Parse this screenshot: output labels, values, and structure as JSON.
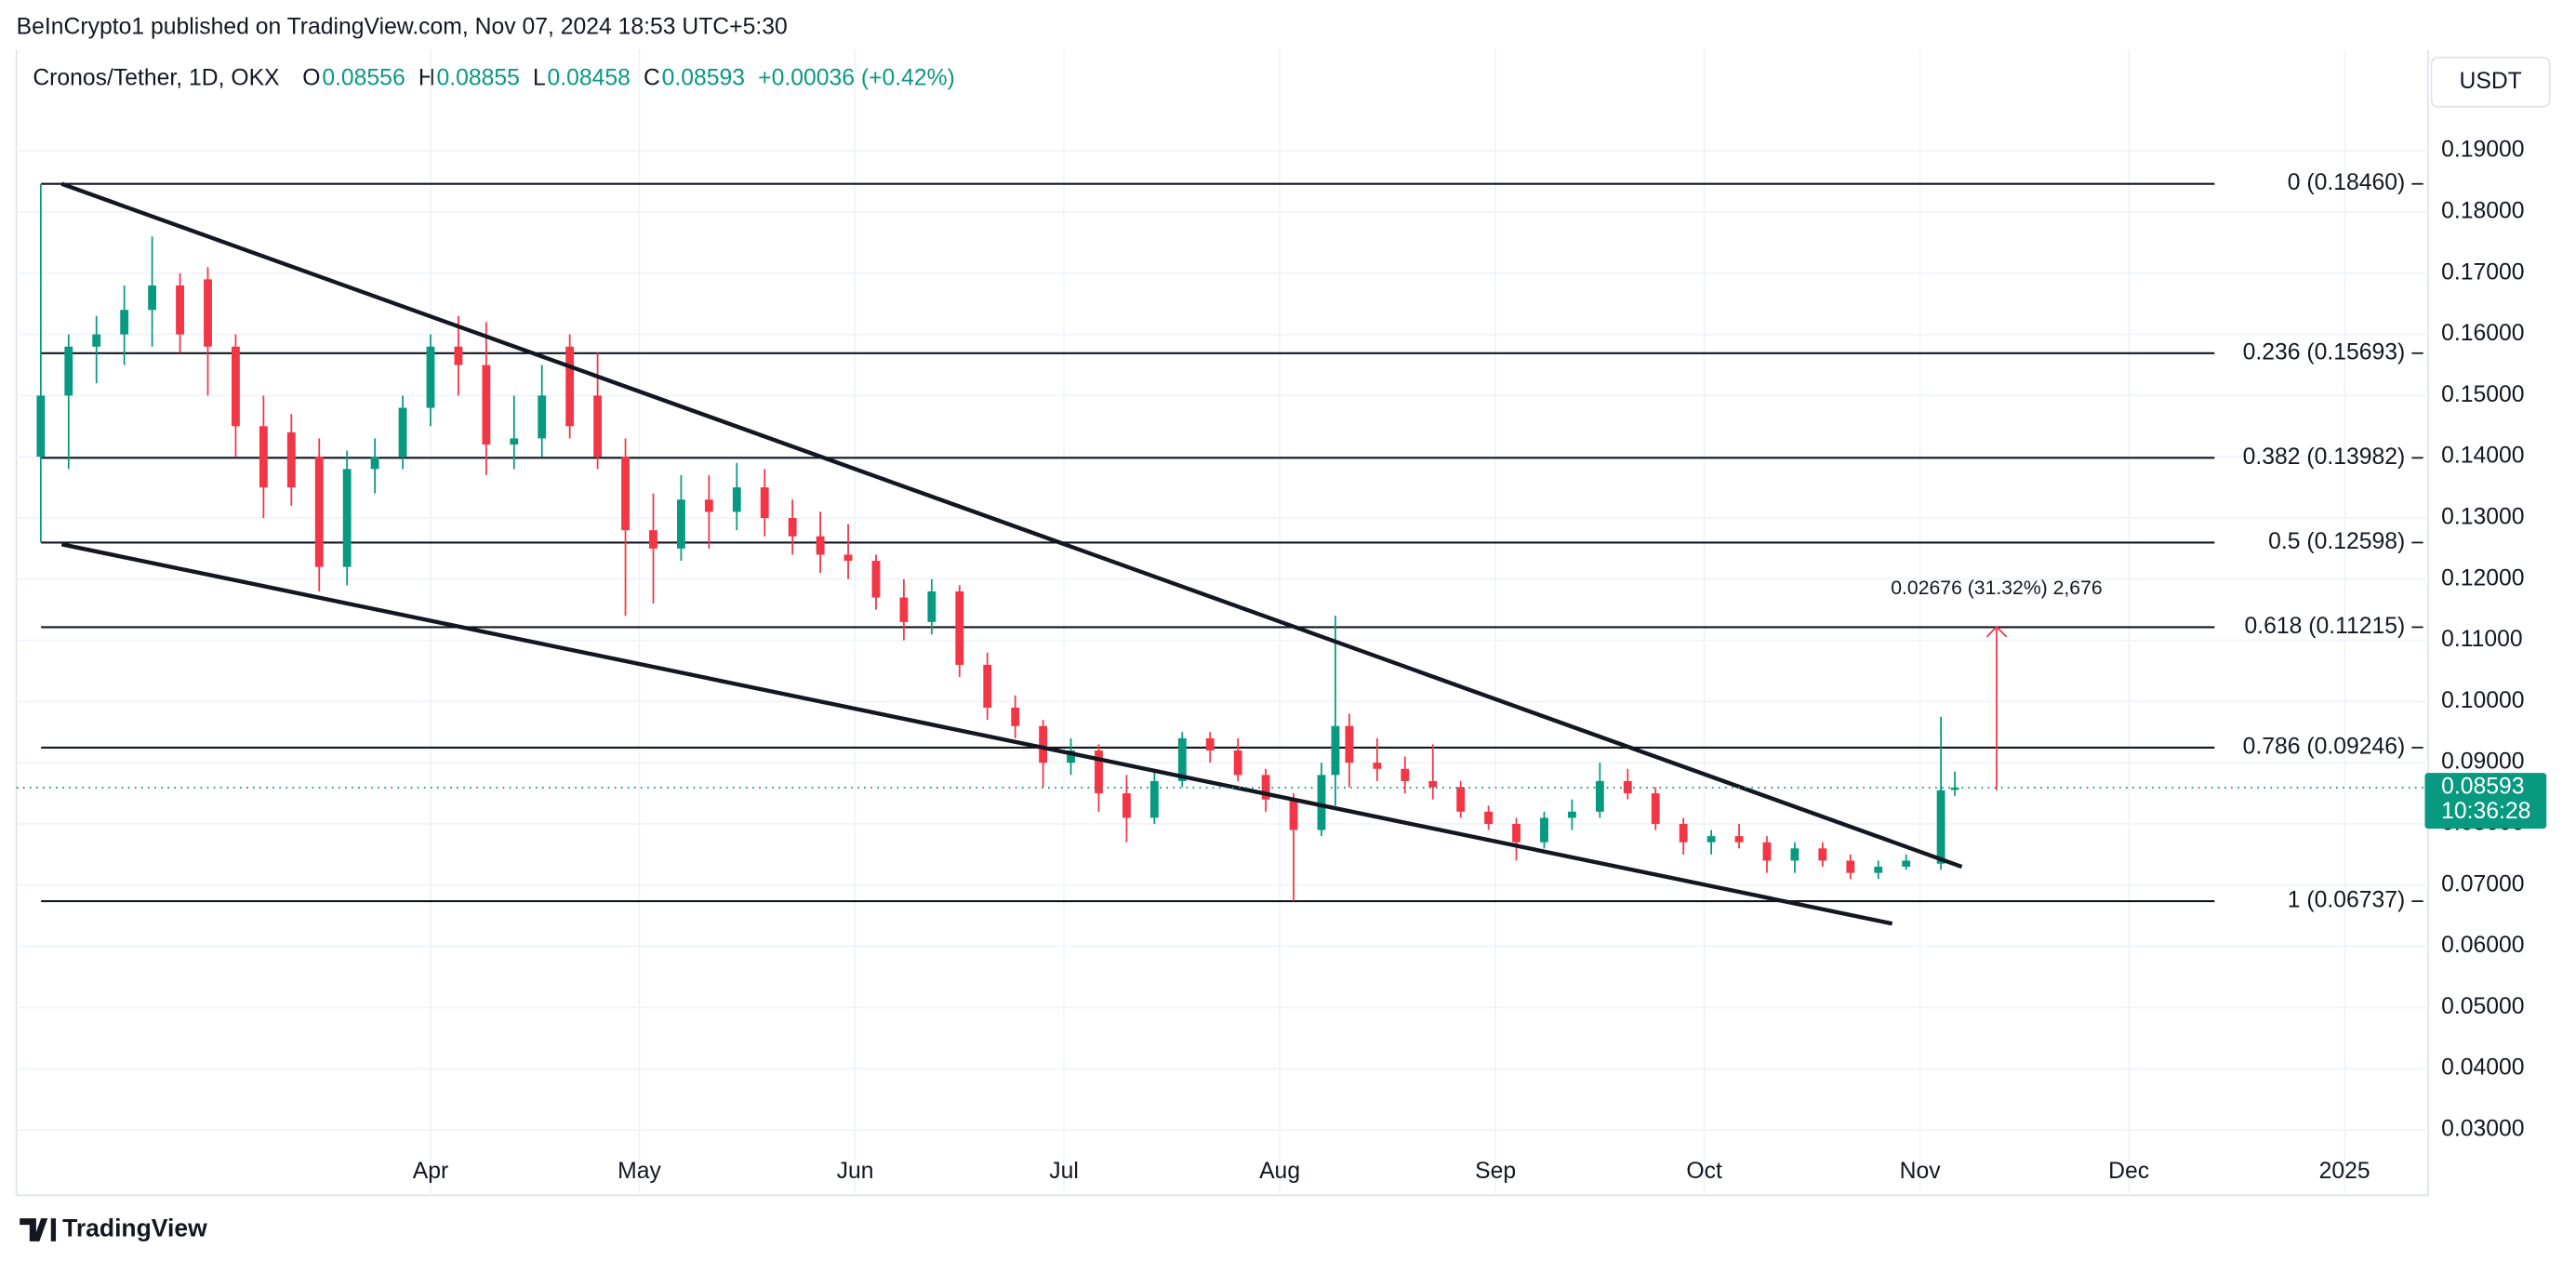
{
  "chart_data": {
    "type": "candlestick",
    "header": "BeInCrypto1 published on TradingView.com, Nov 07, 2024 18:53 UTC+5:30",
    "title": "Cronos/Tether, 1D, OKX",
    "legend": [
      {
        "key": "O",
        "value": 0.08556
      },
      {
        "key": "H",
        "value": 0.08855
      },
      {
        "key": "L",
        "value": 0.08458
      },
      {
        "key": "C",
        "value": 0.08593
      }
    ],
    "change": "+0.00036 (+0.42%)",
    "currency": "USDT",
    "brand": "TradingView",
    "up_color": "#089981",
    "down_color": "#f23645",
    "xlim": [
      32.5,
      379
    ],
    "xticks": [
      {
        "value": 92,
        "label": "Apr"
      },
      {
        "value": 122,
        "label": "May"
      },
      {
        "value": 153,
        "label": "Jun"
      },
      {
        "value": 183,
        "label": "Jul"
      },
      {
        "value": 214,
        "label": "Aug"
      },
      {
        "value": 245,
        "label": "Sep"
      },
      {
        "value": 275,
        "label": "Oct"
      },
      {
        "value": 306,
        "label": "Nov"
      },
      {
        "value": 336,
        "label": "Dec"
      },
      {
        "value": 367,
        "label": "2025"
      }
    ],
    "ylim": [
      0.0193,
      0.2066
    ],
    "yticks": [
      {
        "value": 0.03,
        "label": "0.03000"
      },
      {
        "value": 0.04,
        "label": "0.04000"
      },
      {
        "value": 0.05,
        "label": "0.05000"
      },
      {
        "value": 0.06,
        "label": "0.06000"
      },
      {
        "value": 0.07,
        "label": "0.07000"
      },
      {
        "value": 0.08,
        "label": "0.08000"
      },
      {
        "value": 0.09,
        "label": "0.09000"
      },
      {
        "value": 0.1,
        "label": "0.10000"
      },
      {
        "value": 0.11,
        "label": "0.11000"
      },
      {
        "value": 0.12,
        "label": "0.12000"
      },
      {
        "value": 0.13,
        "label": "0.13000"
      },
      {
        "value": 0.14,
        "label": "0.14000"
      },
      {
        "value": 0.15,
        "label": "0.15000"
      },
      {
        "value": 0.16,
        "label": "0.16000"
      },
      {
        "value": 0.17,
        "label": "0.17000"
      },
      {
        "value": 0.18,
        "label": "0.18000"
      },
      {
        "value": 0.19,
        "label": "0.19000"
      }
    ],
    "grid": true,
    "candles": {
      "x": [
        36,
        40,
        44,
        48,
        52,
        56,
        60,
        64,
        68,
        72,
        76,
        80,
        84,
        88,
        92,
        96,
        100,
        104,
        108,
        112,
        116,
        120,
        124,
        128,
        132,
        136,
        140,
        144,
        148,
        152,
        156,
        160,
        164,
        168,
        172,
        176,
        180,
        184,
        188,
        192,
        196,
        200,
        204,
        208,
        212,
        216,
        220,
        222,
        224,
        228,
        232,
        236,
        240,
        244,
        248,
        252,
        256,
        260,
        264,
        268,
        272,
        276,
        280,
        284,
        288,
        292,
        296,
        300,
        304,
        309,
        311
      ],
      "open": [
        0.14,
        0.15,
        0.158,
        0.16,
        0.164,
        0.168,
        0.169,
        0.158,
        0.145,
        0.144,
        0.14,
        0.122,
        0.138,
        0.14,
        0.148,
        0.158,
        0.155,
        0.142,
        0.143,
        0.158,
        0.15,
        0.14,
        0.128,
        0.125,
        0.133,
        0.131,
        0.135,
        0.13,
        0.127,
        0.124,
        0.123,
        0.117,
        0.113,
        0.118,
        0.106,
        0.099,
        0.096,
        0.09,
        0.092,
        0.085,
        0.081,
        0.087,
        0.094,
        0.092,
        0.088,
        0.084,
        0.079,
        0.088,
        0.096,
        0.09,
        0.089,
        0.087,
        0.086,
        0.082,
        0.08,
        0.077,
        0.081,
        0.082,
        0.087,
        0.085,
        0.08,
        0.077,
        0.078,
        0.077,
        0.074,
        0.076,
        0.074,
        0.072,
        0.073,
        0.0735,
        0.08556
      ],
      "high": [
        0.1846,
        0.16,
        0.163,
        0.168,
        0.176,
        0.17,
        0.171,
        0.16,
        0.15,
        0.147,
        0.143,
        0.141,
        0.143,
        0.15,
        0.16,
        0.163,
        0.162,
        0.15,
        0.155,
        0.16,
        0.157,
        0.143,
        0.134,
        0.137,
        0.137,
        0.139,
        0.138,
        0.133,
        0.131,
        0.129,
        0.124,
        0.12,
        0.12,
        0.119,
        0.108,
        0.101,
        0.097,
        0.094,
        0.093,
        0.088,
        0.089,
        0.095,
        0.095,
        0.094,
        0.089,
        0.085,
        0.09,
        0.114,
        0.098,
        0.094,
        0.091,
        0.093,
        0.087,
        0.083,
        0.081,
        0.082,
        0.084,
        0.09,
        0.089,
        0.086,
        0.081,
        0.079,
        0.08,
        0.078,
        0.077,
        0.077,
        0.075,
        0.074,
        0.075,
        0.0975,
        0.08855
      ],
      "low": [
        0.126,
        0.138,
        0.152,
        0.155,
        0.158,
        0.157,
        0.15,
        0.14,
        0.13,
        0.132,
        0.118,
        0.119,
        0.134,
        0.138,
        0.145,
        0.15,
        0.137,
        0.138,
        0.14,
        0.143,
        0.138,
        0.114,
        0.116,
        0.123,
        0.125,
        0.128,
        0.127,
        0.124,
        0.121,
        0.12,
        0.115,
        0.11,
        0.111,
        0.104,
        0.097,
        0.094,
        0.086,
        0.088,
        0.082,
        0.077,
        0.08,
        0.086,
        0.09,
        0.087,
        0.082,
        0.0674,
        0.078,
        0.083,
        0.086,
        0.087,
        0.085,
        0.084,
        0.081,
        0.079,
        0.074,
        0.076,
        0.079,
        0.081,
        0.084,
        0.079,
        0.075,
        0.075,
        0.076,
        0.072,
        0.072,
        0.073,
        0.071,
        0.071,
        0.0725,
        0.0725,
        0.08458
      ],
      "close": [
        0.15,
        0.158,
        0.16,
        0.164,
        0.168,
        0.16,
        0.158,
        0.145,
        0.135,
        0.135,
        0.122,
        0.138,
        0.14,
        0.148,
        0.158,
        0.155,
        0.142,
        0.143,
        0.15,
        0.145,
        0.14,
        0.128,
        0.125,
        0.133,
        0.131,
        0.135,
        0.13,
        0.127,
        0.124,
        0.123,
        0.117,
        0.113,
        0.118,
        0.106,
        0.099,
        0.096,
        0.09,
        0.092,
        0.085,
        0.081,
        0.087,
        0.094,
        0.092,
        0.088,
        0.084,
        0.079,
        0.088,
        0.096,
        0.09,
        0.089,
        0.087,
        0.086,
        0.082,
        0.08,
        0.077,
        0.081,
        0.082,
        0.087,
        0.085,
        0.08,
        0.077,
        0.078,
        0.077,
        0.074,
        0.076,
        0.074,
        0.072,
        0.073,
        0.074,
        0.0855,
        0.08593
      ]
    },
    "last_price": {
      "value": 0.08593,
      "label": "0.08593",
      "countdown": "10:36:28"
    },
    "fib_levels": [
      {
        "label": "0 (0.18460)",
        "value": 0.1846
      },
      {
        "label": "0.236 (0.15693)",
        "value": 0.15693
      },
      {
        "label": "0.382 (0.13982)",
        "value": 0.13982
      },
      {
        "label": "0.5 (0.12598)",
        "value": 0.12598
      },
      {
        "label": "0.618 (0.11215)",
        "value": 0.11215
      },
      {
        "label": "0.786 (0.09246)",
        "value": 0.09246
      },
      {
        "label": "1 (0.06737)",
        "value": 0.06737
      }
    ],
    "trendlines": [
      {
        "x": [
          39,
          312
        ],
        "y": [
          0.1846,
          0.073
        ]
      },
      {
        "x": [
          39,
          302
        ],
        "y": [
          0.1257,
          0.0637
        ]
      }
    ],
    "measure": {
      "text": "0.02676 (31.32%) 2,676",
      "x": 317,
      "from": 0.0855,
      "to": 0.1122
    }
  }
}
